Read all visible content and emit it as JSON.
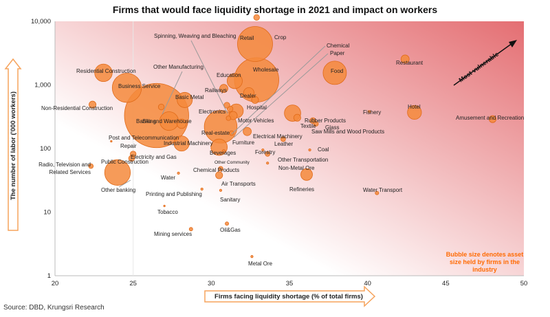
{
  "title": "Firms that would face liquidity shortage in 2021 and impact on workers",
  "source": "Source: DBD, Krungsri Research",
  "note": "Bubble size denotes asset size held by firms in the industry",
  "trend_label": "Most vulnerable",
  "colors": {
    "bubble": "#F58A3C",
    "bubble_stroke": "#E06A18",
    "note": "#FF6A00",
    "axis_arrow": "#F6A35C"
  },
  "chart_data": {
    "type": "scatter",
    "title": "Firms that would face liquidity shortage in 2021 and impact on workers",
    "xlabel": "Firms facing liquidity shortage  (% of total firms)",
    "ylabel": "The number of labor ('000 workers)",
    "xlim": [
      20,
      50
    ],
    "ylim": [
      1,
      10000
    ],
    "y_scale": "log",
    "x_ticks": [
      "20",
      "25",
      "30",
      "35",
      "40",
      "45",
      "50"
    ],
    "y_ticks": [
      "1",
      "10",
      "100",
      "1,000",
      "10,000"
    ],
    "grid": false,
    "points": [
      {
        "name": "Crop",
        "x": 32.9,
        "y": 11500,
        "size": 5
      },
      {
        "name": "Retail",
        "x": 32.8,
        "y": 4400,
        "size": 30
      },
      {
        "name": "Wholesale",
        "x": 32.9,
        "y": 1200,
        "size": 38
      },
      {
        "name": "Spinning, Weaving and Bleaching",
        "x": 31.2,
        "y": 420,
        "size": 5
      },
      {
        "name": "Chemical",
        "x": 31.4,
        "y": 330,
        "size": 7
      },
      {
        "name": "Paper",
        "x": 31.1,
        "y": 300,
        "size": 4
      },
      {
        "name": "Food",
        "x": 37.9,
        "y": 1550,
        "size": 20
      },
      {
        "name": "Restaurant",
        "x": 42.4,
        "y": 2550,
        "size": 7
      },
      {
        "name": "Residential Construction",
        "x": 23.1,
        "y": 1550,
        "size": 15
      },
      {
        "name": "Business Service",
        "x": 24.6,
        "y": 900,
        "size": 25
      },
      {
        "name": "Other Manufacturing",
        "x": 26.8,
        "y": 450,
        "size": 5
      },
      {
        "name": "Education",
        "x": 31.5,
        "y": 1150,
        "size": 13
      },
      {
        "name": "Railways",
        "x": 30.8,
        "y": 880,
        "size": 7
      },
      {
        "name": "Dealer",
        "x": 32.4,
        "y": 750,
        "size": 9
      },
      {
        "name": "Basic Metal",
        "x": 28.3,
        "y": 580,
        "size": 13
      },
      {
        "name": "Hospital",
        "x": 32.8,
        "y": 580,
        "size": 6
      },
      {
        "name": "Electronics",
        "x": 31.0,
        "y": 480,
        "size": 5
      },
      {
        "name": "Motor Vehicles",
        "x": 31.6,
        "y": 390,
        "size": 12
      },
      {
        "name": "Banking",
        "x": 26.5,
        "y": 330,
        "size": 55
      },
      {
        "name": "Silo and Warehouse",
        "x": 27.3,
        "y": 270,
        "size": 16
      },
      {
        "name": "Real-estate",
        "x": 30.6,
        "y": 220,
        "size": 28
      },
      {
        "name": "Non-Residential Construction",
        "x": 22.4,
        "y": 490,
        "size": 6
      },
      {
        "name": "Rubber Products",
        "x": 35.2,
        "y": 360,
        "size": 14
      },
      {
        "name": "Textile",
        "x": 35.5,
        "y": 305,
        "size": 6
      },
      {
        "name": "Glass",
        "x": 36.5,
        "y": 275,
        "size": 5
      },
      {
        "name": "Saw Mills and Wood Products",
        "x": 36.7,
        "y": 245,
        "size": 4
      },
      {
        "name": "Fishery",
        "x": 40.1,
        "y": 380,
        "size": 2
      },
      {
        "name": "Hotel",
        "x": 43.0,
        "y": 370,
        "size": 12
      },
      {
        "name": "Amusement and Recreation",
        "x": 48.0,
        "y": 290,
        "size": 6
      },
      {
        "name": "Post and Telecommunication",
        "x": 28.1,
        "y": 245,
        "size": 8
      },
      {
        "name": "Repair",
        "x": 23.6,
        "y": 130,
        "size": 1
      },
      {
        "name": "Industrial Machinery",
        "x": 28.1,
        "y": 120,
        "size": 13
      },
      {
        "name": "Electrical Machinery",
        "x": 32.3,
        "y": 185,
        "size": 7
      },
      {
        "name": "Furniture",
        "x": 31.3,
        "y": 175,
        "size": 4
      },
      {
        "name": "Leather",
        "x": 34.6,
        "y": 140,
        "size": 4
      },
      {
        "name": "Beverages",
        "x": 30.5,
        "y": 105,
        "size": 14
      },
      {
        "name": "Forestry",
        "x": 33.3,
        "y": 95,
        "size": 2
      },
      {
        "name": "Electricity and Gas",
        "x": 25.0,
        "y": 82,
        "size": 5
      },
      {
        "name": "Coal",
        "x": 36.3,
        "y": 95,
        "size": 2
      },
      {
        "name": "Other Community",
        "x": 30.8,
        "y": 90,
        "size": 3
      },
      {
        "name": "Other Transportation",
        "x": 33.6,
        "y": 82,
        "size": 4
      },
      {
        "name": "Public Construction",
        "x": 24.9,
        "y": 70,
        "size": 5
      },
      {
        "name": "Radio, Television and Related Services",
        "x": 22.3,
        "y": 53,
        "size": 4
      },
      {
        "name": "Non-Metal Ore",
        "x": 33.6,
        "y": 59,
        "size": 2
      },
      {
        "name": "Chemical Products",
        "x": 30.6,
        "y": 48,
        "size": 4
      },
      {
        "name": "Other banking",
        "x": 24.0,
        "y": 42,
        "size": 22
      },
      {
        "name": "Water",
        "x": 27.9,
        "y": 41,
        "size": 2
      },
      {
        "name": "Air Transports",
        "x": 30.5,
        "y": 38,
        "size": 6
      },
      {
        "name": "Refineries",
        "x": 36.1,
        "y": 39,
        "size": 10
      },
      {
        "name": "Printing and Publishing",
        "x": 29.4,
        "y": 23,
        "size": 2
      },
      {
        "name": "Sanitary",
        "x": 30.6,
        "y": 22,
        "size": 2
      },
      {
        "name": "Water Transport",
        "x": 40.6,
        "y": 20,
        "size": 3
      },
      {
        "name": "Tobacco",
        "x": 27.0,
        "y": 12.5,
        "size": 1
      },
      {
        "name": "Oil&Gas",
        "x": 31.0,
        "y": 6.6,
        "size": 3
      },
      {
        "name": "Mining services",
        "x": 28.7,
        "y": 5.4,
        "size": 3
      },
      {
        "name": "Metal Ore",
        "x": 32.6,
        "y": 2.0,
        "size": 2
      }
    ]
  }
}
